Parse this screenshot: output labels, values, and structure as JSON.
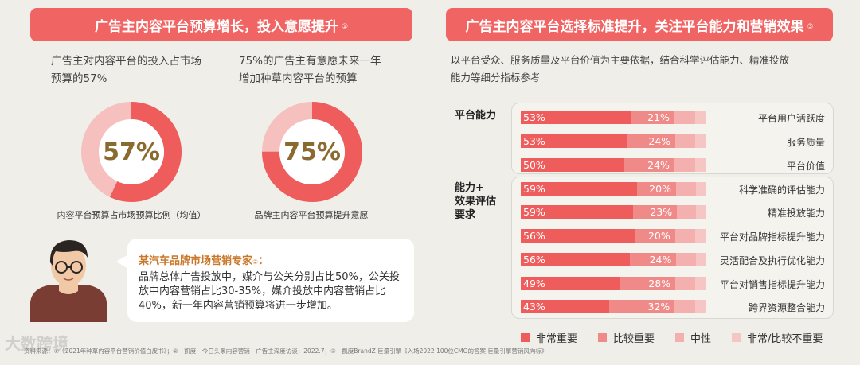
{
  "left_banner": {
    "title": "广告主内容平台预算增长，投入意愿提升",
    "note": "①"
  },
  "right_banner": {
    "title": "广告主内容平台选择标准提升，关注平台能力和营销效果",
    "note": "③"
  },
  "desc1": {
    "line1": "广告主对内容平台的投入占市场",
    "line2": "预算的57%"
  },
  "desc2": {
    "line1": "75%的广告主有意愿未来一年",
    "line2": "增加种草内容平台的预算"
  },
  "donut1": {
    "value_label": "57%",
    "value": 57,
    "caption": "内容平台预算占市场预算比例（均值）"
  },
  "donut2": {
    "value_label": "75%",
    "value": 75,
    "caption": "品牌主内容平台预算提升意愿"
  },
  "quote": {
    "title": "某汽车品牌市场营销专家",
    "note": "②",
    "colon": "：",
    "text": "品牌总体广告投放中，媒介与公关分别占比50%，公关投放中内容营销占比30-35%，媒介投放中内容营销占比40%，新一年内容营销预算将进一步增加。"
  },
  "right_desc": {
    "line1": "以平台受众、服务质量及平台价值为主要依据，结合科学评估能力、精准投放",
    "line2": "能力等细分指标参考"
  },
  "groups": {
    "g1": "平台能力",
    "g2_l1": "能力+",
    "g2_l2": "效果评估",
    "g2_l3": "要求"
  },
  "footer": "资料来源：①《2021年种草内容平台营销价值白皮书》；②－凯度－今日头条内容营销－广告主深度访谈，2022.7；③－凯度BrandZ  巨量引擎《入场2022 100位CMO的答案 巨量引擎营销风向标》",
  "watermark": "大数跨境",
  "colors": {
    "very_important": "#ee5c5c",
    "important": "#f08a88",
    "neutral": "#f3b0ae",
    "not_important": "#f5c6c4"
  },
  "chart_data": {
    "type": "bar",
    "orientation": "horizontal",
    "stacked": true,
    "categories": [
      "平台用户活跃度",
      "服务质量",
      "平台价值",
      "科学准确的评估能力",
      "精准投放能力",
      "平台对品牌指标提升能力",
      "灵活配合及执行优化能力",
      "平台对销售指标提升能力",
      "跨界资源整合能力"
    ],
    "category_groups": [
      "平台能力",
      "平台能力",
      "平台能力",
      "能力+效果评估要求",
      "能力+效果评估要求",
      "能力+效果评估要求",
      "能力+效果评估要求",
      "能力+效果评估要求",
      "能力+效果评估要求"
    ],
    "series": [
      {
        "name": "非常重要",
        "values": [
          53,
          53,
          50,
          59,
          59,
          56,
          56,
          49,
          43
        ],
        "labels": [
          "53%",
          "53%",
          "50%",
          "59%",
          "59%",
          "56%",
          "56%",
          "49%",
          "43%"
        ]
      },
      {
        "name": "比较重要",
        "values": [
          21,
          24,
          24,
          20,
          23,
          20,
          24,
          28,
          32
        ],
        "labels": [
          "21%",
          "24%",
          "24%",
          "20%",
          "23%",
          "20%",
          "24%",
          "28%",
          "32%"
        ]
      },
      {
        "name": "中性",
        "values": [
          10,
          10,
          10,
          10,
          10,
          10,
          10,
          10,
          10
        ]
      },
      {
        "name": "非常/比较不重要",
        "values": [
          5,
          5,
          5,
          5,
          5,
          5,
          5,
          5,
          5
        ]
      }
    ],
    "xlim": [
      0,
      100
    ]
  }
}
